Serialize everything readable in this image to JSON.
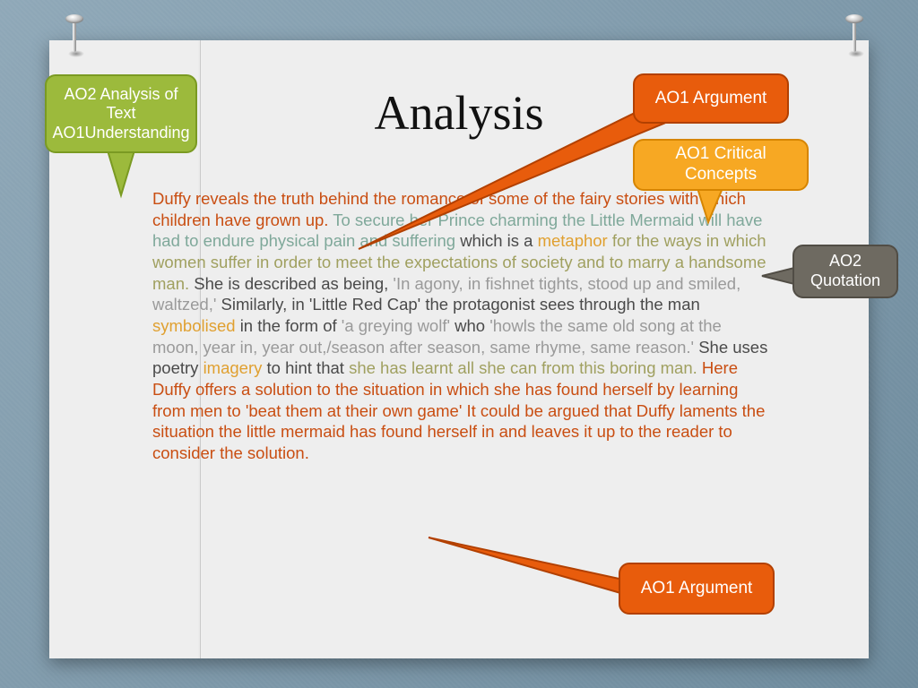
{
  "title": "Analysis",
  "callouts": {
    "green": "AO2 Analysis of Text AO1Understanding",
    "ao1_top": "AO1 Argument",
    "crit": "AO1 Critical Concepts",
    "quote": "AO2 Quotation",
    "ao1_bot": "AO1 Argument"
  },
  "colors": {
    "orange_text": "#c94e12",
    "teal_text": "#7fa89a",
    "olive_text": "#a0a060",
    "yellow_text": "#e0a030",
    "gray_text": "#9a9a9a",
    "dark_text": "#4a4a4a"
  },
  "paragraph": [
    {
      "c": "orange_text",
      "t": "Duffy reveals the truth behind the romance of some of the fairy stories with which children have grown up. "
    },
    {
      "c": "teal_text",
      "t": "To secure her Prince charming the Little Mermaid will have had to endure physical pain and suffering "
    },
    {
      "c": "dark_text",
      "t": "which is a "
    },
    {
      "c": "yellow_text",
      "t": "metaphor "
    },
    {
      "c": "olive_text",
      "t": "for the ways in which women suffer in order to meet the expectations of society and to marry a handsome man. "
    },
    {
      "c": "dark_text",
      "t": "She is described as being, "
    },
    {
      "c": "gray_text",
      "t": "'In agony, in fishnet tights, stood up and smiled, waltzed,' "
    },
    {
      "c": "dark_text",
      "t": "Similarly, in 'Little Red Cap' the protagonist sees through the man "
    },
    {
      "c": "yellow_text",
      "t": "symbolised "
    },
    {
      "c": "dark_text",
      "t": "in the form of "
    },
    {
      "c": "gray_text",
      "t": "'a greying wolf' "
    },
    {
      "c": "dark_text",
      "t": "who "
    },
    {
      "c": "gray_text",
      "t": "'howls the same old song at the moon, year in, year out,/season after season, same rhyme, same reason.' "
    },
    {
      "c": "dark_text",
      "t": "She uses poetry "
    },
    {
      "c": "yellow_text",
      "t": "imagery "
    },
    {
      "c": "dark_text",
      "t": "to hint that "
    },
    {
      "c": "olive_text",
      "t": "she has learnt all she can from this boring man. "
    },
    {
      "c": "orange_text",
      "t": "Here Duffy offers a solution to the situation in which she has found herself by learning from men to 'beat them at their own game' It could be argued that Duffy laments the situation the little mermaid has found herself in and leaves it up to the reader to consider the solution."
    }
  ]
}
